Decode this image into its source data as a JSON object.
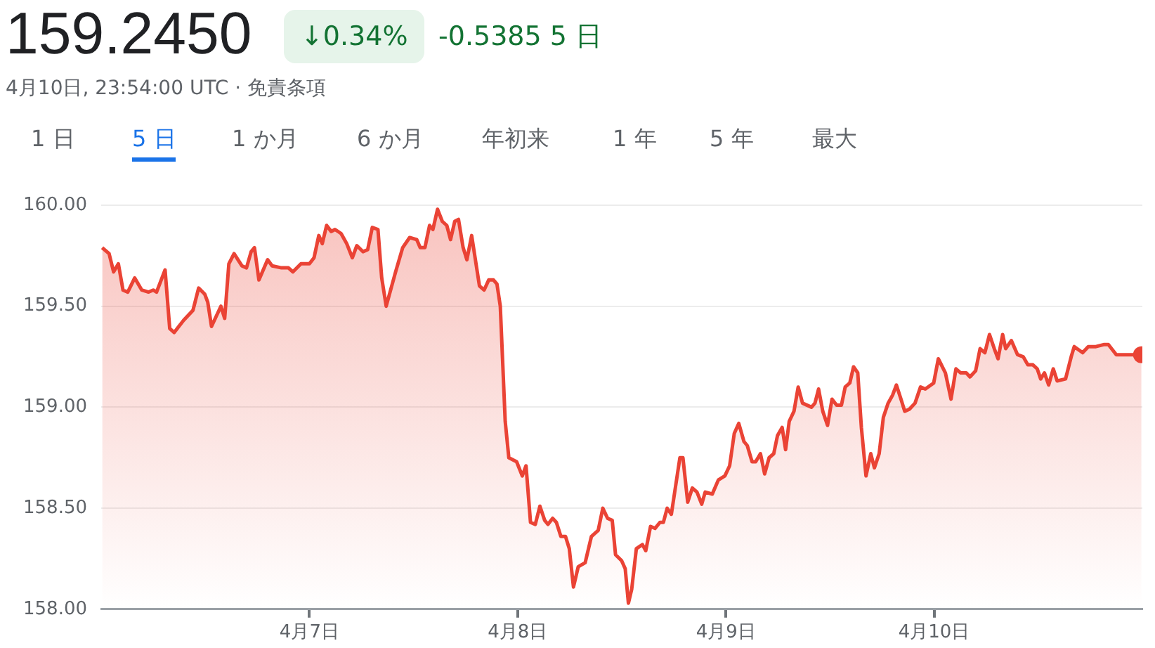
{
  "chart_data": {
    "type": "area",
    "title": "159.2450",
    "subtitle": "4月10日, 23:54:00 UTC · 免責条項",
    "annotations": [
      "↓0.34%",
      "-0.5385 5 日",
      "1 日",
      "5 日",
      "1 か月",
      "6 か月",
      "年初来",
      "1 年",
      "5 年",
      "最大"
    ],
    "x": [
      "--04-06T00:07",
      "--04-06T00:55",
      "--04-06T01:26",
      "--04-06T01:59",
      "--04-06T02:31",
      "--04-06T03:04",
      "--04-06T03:52",
      "--04-06T04:41",
      "--04-06T05:28",
      "--04-06T06:00",
      "--04-06T06:23",
      "--04-06T07:22",
      "--04-06T07:54",
      "--04-06T08:25",
      "--04-06T09:30",
      "--04-06T10:35",
      "--04-06T11:14",
      "--04-06T11:56",
      "--04-06T12:17",
      "--04-06T12:43",
      "--04-06T13:48",
      "--04-06T14:14",
      "--04-06T14:43",
      "--04-06T15:19",
      "--04-06T16:13",
      "--04-06T16:45",
      "--04-06T17:17",
      "--04-06T17:40",
      "--04-06T18:11",
      "--04-06T19:11",
      "--04-06T19:42",
      "--04-06T20:47",
      "--04-06T21:35",
      "--04-06T22:06",
      "--04-06T23:02",
      "--04-07T00:00",
      "--04-07T00:32",
      "--04-07T01:05",
      "--04-07T01:29",
      "--04-07T01:59",
      "--04-07T02:31",
      "--04-07T02:57",
      "--04-07T03:39",
      "--04-07T04:18",
      "--04-07T04:57",
      "--04-07T05:28",
      "--04-07T06:10",
      "--04-07T06:43",
      "--04-07T07:15",
      "--04-07T07:54",
      "--04-07T08:20",
      "--04-07T08:51",
      "--04-07T09:56",
      "--04-07T10:45",
      "--04-07T11:33",
      "--04-07T12:22",
      "--04-07T12:46",
      "--04-07T13:19",
      "--04-07T13:51",
      "--04-07T14:14",
      "--04-07T14:46",
      "--04-07T15:19",
      "--04-07T15:50",
      "--04-07T16:16",
      "--04-07T16:45",
      "--04-07T17:11",
      "--04-07T17:43",
      "--04-07T18:09",
      "--04-07T18:42",
      "--04-07T19:36",
      "--04-07T20:08",
      "--04-07T20:40",
      "--04-07T21:13",
      "--04-07T21:37",
      "--04-07T22:00",
      "--04-07T22:34",
      "--04-07T22:59",
      "--04-07T23:53",
      "--04-08T00:32",
      "--04-08T00:58",
      "--04-08T01:29",
      "--04-08T02:02",
      "--04-08T02:34",
      "--04-08T03:07",
      "--04-08T03:30",
      "--04-08T04:02",
      "--04-08T04:28",
      "--04-08T04:59",
      "--04-08T05:31",
      "--04-08T05:57",
      "--04-08T06:26",
      "--04-08T06:59",
      "--04-08T07:47",
      "--04-08T08:30",
      "--04-08T09:17",
      "--04-08T09:49",
      "--04-08T10:22",
      "--04-08T10:54",
      "--04-08T11:17",
      "--04-08T11:59",
      "--04-08T12:24",
      "--04-08T12:46",
      "--04-08T13:09",
      "--04-08T13:41",
      "--04-08T14:23",
      "--04-08T14:46",
      "--04-08T15:19",
      "--04-08T15:50",
      "--04-08T16:24",
      "--04-08T16:48",
      "--04-08T17:14",
      "--04-08T17:43",
      "--04-08T18:42",
      "--04-08T19:03",
      "--04-08T19:36",
      "--04-08T20:08",
      "--04-08T20:40",
      "--04-08T21:13",
      "--04-08T21:37",
      "--04-08T22:26",
      "--04-08T23:08",
      "--04-08T23:53",
      "--04-09T00:26",
      "--04-09T00:58",
      "--04-09T01:29",
      "--04-09T02:05",
      "--04-09T02:28",
      "--04-09T03:01",
      "--04-09T03:26",
      "--04-09T03:59",
      "--04-09T04:28",
      "--04-09T04:59",
      "--04-09T05:31",
      "--04-09T05:57",
      "--04-09T06:29",
      "--04-09T06:53",
      "--04-09T07:18",
      "--04-09T07:51",
      "--04-09T08:20",
      "--04-09T08:50",
      "--04-09T09:52",
      "--04-09T10:16",
      "--04-09T10:41",
      "--04-09T11:10",
      "--04-09T11:43",
      "--04-09T12:14",
      "--04-09T12:46",
      "--04-09T13:19",
      "--04-09T13:45",
      "--04-09T14:17",
      "--04-09T14:43",
      "--04-09T15:12",
      "--04-09T15:37",
      "--04-09T16:09",
      "--04-09T16:42",
      "--04-09T17:07",
      "--04-09T17:40",
      "--04-09T18:09",
      "--04-09T18:42",
      "--04-09T19:13",
      "--04-09T19:39",
      "--04-09T20:11",
      "--04-09T20:37",
      "--04-09T21:09",
      "--04-09T21:48",
      "--04-09T22:26",
      "--04-09T22:59",
      "--04-09T23:57",
      "--04-10T00:29",
      "--04-10T01:18",
      "--04-10T01:57",
      "--04-10T02:31",
      "--04-10T03:04",
      "--04-10T03:42",
      "--04-10T04:08",
      "--04-10T04:47",
      "--04-10T05:18",
      "--04-10T05:51",
      "--04-10T06:23",
      "--04-10T06:56",
      "--04-10T07:22",
      "--04-10T07:54",
      "--04-10T08:15",
      "--04-10T08:54",
      "--04-10T09:37",
      "--04-10T10:16",
      "--04-10T10:48",
      "--04-10T11:23",
      "--04-10T11:53",
      "--04-10T12:17",
      "--04-10T12:43",
      "--04-10T13:12",
      "--04-10T13:44",
      "--04-10T14:11",
      "--04-10T15:09",
      "--04-10T15:48",
      "--04-10T16:09",
      "--04-10T17:07",
      "--04-10T17:46",
      "--04-10T18:39",
      "--04-10T19:32",
      "--04-10T20:05",
      "--04-10T21:00",
      "--04-10T23:54"
    ],
    "values": [
      159.79,
      159.76,
      159.67,
      159.71,
      159.58,
      159.57,
      159.64,
      159.58,
      159.57,
      159.58,
      159.57,
      159.68,
      159.39,
      159.37,
      159.43,
      159.48,
      159.59,
      159.56,
      159.52,
      159.4,
      159.5,
      159.44,
      159.71,
      159.76,
      159.7,
      159.69,
      159.77,
      159.79,
      159.63,
      159.73,
      159.7,
      159.69,
      159.69,
      159.67,
      159.71,
      159.71,
      159.74,
      159.85,
      159.81,
      159.9,
      159.87,
      159.88,
      159.86,
      159.81,
      159.74,
      159.8,
      159.77,
      159.78,
      159.89,
      159.88,
      159.64,
      159.5,
      159.67,
      159.79,
      159.84,
      159.83,
      159.79,
      159.79,
      159.9,
      159.88,
      159.98,
      159.92,
      159.9,
      159.83,
      159.92,
      159.93,
      159.79,
      159.73,
      159.85,
      159.6,
      159.58,
      159.63,
      159.63,
      159.61,
      159.5,
      158.93,
      158.75,
      158.73,
      158.66,
      158.71,
      158.43,
      158.42,
      158.51,
      158.44,
      158.42,
      158.45,
      158.43,
      158.36,
      158.36,
      158.3,
      158.11,
      158.21,
      158.23,
      158.36,
      158.39,
      158.5,
      158.45,
      158.44,
      158.27,
      158.24,
      158.2,
      158.03,
      158.1,
      158.3,
      158.32,
      158.29,
      158.41,
      158.4,
      158.43,
      158.43,
      158.5,
      158.47,
      158.75,
      158.75,
      158.53,
      158.6,
      158.58,
      158.52,
      158.58,
      158.57,
      158.64,
      158.66,
      158.71,
      158.87,
      158.92,
      158.83,
      158.81,
      158.73,
      158.73,
      158.77,
      158.67,
      158.75,
      158.77,
      158.86,
      158.9,
      158.79,
      158.93,
      158.98,
      159.1,
      159.02,
      159.0,
      159.02,
      159.09,
      158.98,
      158.91,
      159.04,
      159.01,
      159.01,
      159.1,
      159.12,
      159.2,
      159.17,
      158.9,
      158.66,
      158.77,
      158.7,
      158.77,
      158.95,
      159.02,
      159.06,
      159.11,
      159.04,
      158.98,
      158.99,
      159.02,
      159.1,
      159.09,
      159.12,
      159.24,
      159.17,
      159.04,
      159.19,
      159.17,
      159.17,
      159.15,
      159.18,
      159.29,
      159.27,
      159.36,
      159.29,
      159.24,
      159.36,
      159.29,
      159.33,
      159.26,
      159.25,
      159.21,
      159.21,
      159.19,
      159.14,
      159.17,
      159.11,
      159.19,
      159.13,
      159.14,
      159.25,
      159.3,
      159.27,
      159.3,
      159.3,
      159.31,
      159.31,
      159.26,
      159.26
    ],
    "color": "#ea4335",
    "xlim": [
      "--04-06T00:00",
      "--04-11T00:00"
    ],
    "xticks": [
      {
        "value": "--04-07",
        "label": "4月7日"
      },
      {
        "value": "--04-08",
        "label": "4月8日"
      },
      {
        "value": "--04-09",
        "label": "4月9日"
      },
      {
        "value": "--04-10",
        "label": "4月10日"
      }
    ],
    "ylim": [
      158,
      160
    ],
    "yticks": [
      {
        "value": 158,
        "label": "158.00"
      },
      {
        "value": 158.5,
        "label": "158.50"
      },
      {
        "value": 159,
        "label": "159.00"
      },
      {
        "value": 159.5,
        "label": "159.50"
      },
      {
        "value": 160,
        "label": "160.00"
      }
    ],
    "grid": "y",
    "legend": false
  }
}
